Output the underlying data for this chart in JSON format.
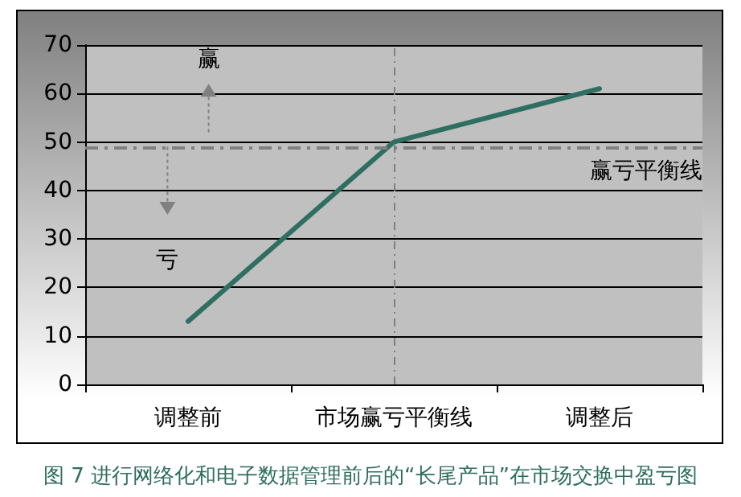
{
  "chart_data": {
    "type": "line",
    "categories": [
      "调整前",
      "市场赢亏平衡线",
      "调整后"
    ],
    "series": [
      {
        "color": "#2f6f62",
        "values": [
          13,
          50,
          61
        ]
      }
    ],
    "ylim": [
      0,
      70
    ],
    "yticks": [
      0,
      10,
      20,
      30,
      40,
      50,
      60,
      70
    ],
    "grid": "y",
    "marker": "none",
    "line_style": "solid",
    "ref_lines": [
      {
        "axis": "y",
        "value": 49,
        "label": "赢亏平衡线",
        "color": "#808080",
        "line_style": "dashed"
      },
      {
        "axis": "x",
        "value": "市场赢亏平衡线",
        "label": null,
        "color": "#808080",
        "line_style": "dashed"
      }
    ],
    "annotations": [
      "赢",
      "亏",
      "图 7 进行网络化和电子数据管理前后的“长尾产品”在市场交换中盈亏图"
    ]
  }
}
